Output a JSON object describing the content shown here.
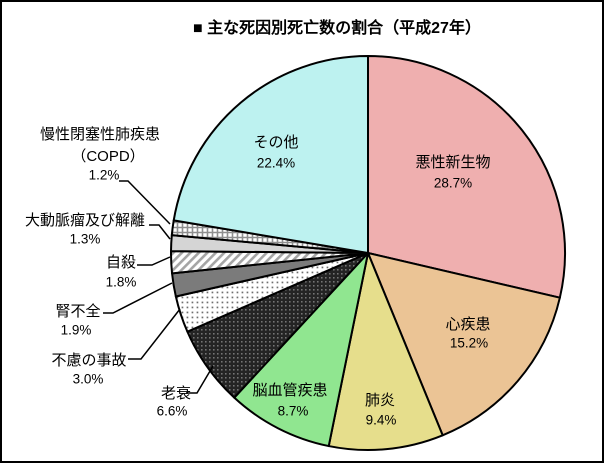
{
  "title": "■ 主な死因別死亡数の割合（平成27年）",
  "chart_data": {
    "type": "pie",
    "title": "主な死因別死亡数の割合（平成27年）",
    "unit": "%",
    "start_angle_deg": 0,
    "direction": "clockwise",
    "legend": "none",
    "segments": [
      {
        "key": "malignant-neoplasm",
        "label": "悪性新生物",
        "value": 28.7,
        "pct_label": "28.7%",
        "fill": "#EFAFAF",
        "pattern": null,
        "label_placement": "inside"
      },
      {
        "key": "heart-disease",
        "label": "心疾患",
        "value": 15.2,
        "pct_label": "15.2%",
        "fill": "#EBC495",
        "pattern": null,
        "label_placement": "inside"
      },
      {
        "key": "pneumonia",
        "label": "肺炎",
        "value": 9.4,
        "pct_label": "9.4%",
        "fill": "#E6DE8C",
        "pattern": null,
        "label_placement": "inside"
      },
      {
        "key": "cerebrovascular-disease",
        "label": "脳血管疾患",
        "value": 8.7,
        "pct_label": "8.7%",
        "fill": "#90E690",
        "pattern": null,
        "label_placement": "inside"
      },
      {
        "key": "senility",
        "label": "老衰",
        "value": 6.6,
        "pct_label": "6.6%",
        "fill": "#242424",
        "pattern": "dark-dots",
        "label_placement": "outside"
      },
      {
        "key": "accidents",
        "label": "不慮の事故",
        "value": 3.0,
        "pct_label": "3.0%",
        "fill": "#FFFFFF",
        "pattern": "light-dots",
        "label_placement": "outside"
      },
      {
        "key": "renal-failure",
        "label": "腎不全",
        "value": 1.9,
        "pct_label": "1.9%",
        "fill": "#7B7B7B",
        "pattern": null,
        "label_placement": "outside"
      },
      {
        "key": "suicide",
        "label": "自殺",
        "value": 1.8,
        "pct_label": "1.8%",
        "fill": "#FFFFFF",
        "pattern": "diagonal-stripes",
        "label_placement": "outside"
      },
      {
        "key": "aortic-aneurysm-dissection",
        "label": "大動脈瘤及び解離",
        "value": 1.3,
        "pct_label": "1.3%",
        "fill": "#D5D5D5",
        "pattern": null,
        "label_placement": "outside"
      },
      {
        "key": "copd",
        "label": "慢性閉塞性肺疾患（COPD）",
        "label_lines": [
          "慢性閉塞性肺疾患",
          "（COPD）"
        ],
        "value": 1.2,
        "pct_label": "1.2%",
        "fill": "#FFFFFF",
        "pattern": "grid-check",
        "label_placement": "outside"
      },
      {
        "key": "others",
        "label": "その他",
        "value": 22.4,
        "pct_label": "22.4%",
        "fill": "#BDF2F0",
        "pattern": null,
        "label_placement": "inside"
      }
    ]
  }
}
